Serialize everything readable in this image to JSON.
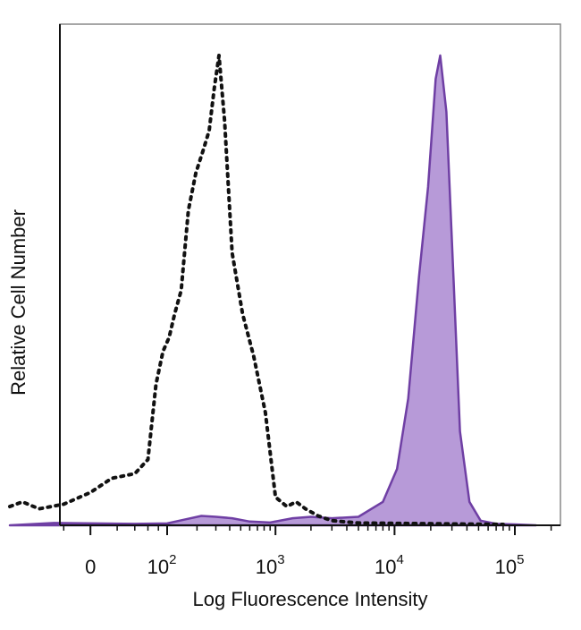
{
  "chart_data": {
    "type": "area",
    "xlabel": "Log Fluorescence Intensity",
    "ylabel": "Relative Cell Number",
    "x_scale": "biexponential",
    "x_ticks": [
      {
        "value": 0,
        "label": "0"
      },
      {
        "value": 100,
        "base": "10",
        "exp": "2"
      },
      {
        "value": 1000,
        "base": "10",
        "exp": "3"
      },
      {
        "value": 10000,
        "base": "10",
        "exp": "4"
      },
      {
        "value": 100000,
        "base": "10",
        "exp": "5"
      }
    ],
    "ylim": [
      0,
      100
    ],
    "grid": false,
    "colors": {
      "stained_fill": "#b79ad8",
      "stained_line": "#6f3fa4",
      "control_line": "#111111"
    },
    "series": [
      {
        "style": "dotted-line",
        "points": [
          [
            -110,
            4
          ],
          [
            -80,
            5
          ],
          [
            -50,
            3.5
          ],
          [
            -20,
            4.5
          ],
          [
            0,
            7
          ],
          [
            15,
            10
          ],
          [
            40,
            11
          ],
          [
            60,
            14
          ],
          [
            75,
            30
          ],
          [
            90,
            37
          ],
          [
            105,
            40
          ],
          [
            120,
            45
          ],
          [
            140,
            50
          ],
          [
            165,
            67
          ],
          [
            195,
            75
          ],
          [
            230,
            80
          ],
          [
            260,
            84
          ],
          [
            290,
            93
          ],
          [
            320,
            100
          ],
          [
            360,
            86
          ],
          [
            420,
            58
          ],
          [
            520,
            45
          ],
          [
            650,
            36
          ],
          [
            820,
            24
          ],
          [
            1000,
            6
          ],
          [
            1250,
            4
          ],
          [
            1500,
            5
          ],
          [
            1800,
            3.5
          ],
          [
            2300,
            2
          ],
          [
            3000,
            1
          ],
          [
            5000,
            0.5
          ],
          [
            80000,
            0.2
          ]
        ]
      },
      {
        "style": "filled",
        "points": [
          [
            -110,
            0
          ],
          [
            -30,
            0.5
          ],
          [
            40,
            0.3
          ],
          [
            100,
            0.4
          ],
          [
            150,
            1.2
          ],
          [
            220,
            2
          ],
          [
            300,
            1.8
          ],
          [
            420,
            1.5
          ],
          [
            600,
            0.8
          ],
          [
            900,
            0.6
          ],
          [
            1400,
            1.5
          ],
          [
            2000,
            1.8
          ],
          [
            3000,
            1.5
          ],
          [
            5000,
            1.8
          ],
          [
            8000,
            5
          ],
          [
            10500,
            12
          ],
          [
            13000,
            27
          ],
          [
            16000,
            53
          ],
          [
            19000,
            72
          ],
          [
            22000,
            95
          ],
          [
            24000,
            100
          ],
          [
            27000,
            88
          ],
          [
            31000,
            52
          ],
          [
            35000,
            20
          ],
          [
            42000,
            5
          ],
          [
            52000,
            1
          ],
          [
            70000,
            0.3
          ],
          [
            100000,
            0.2
          ],
          [
            150000,
            0
          ]
        ]
      }
    ]
  }
}
